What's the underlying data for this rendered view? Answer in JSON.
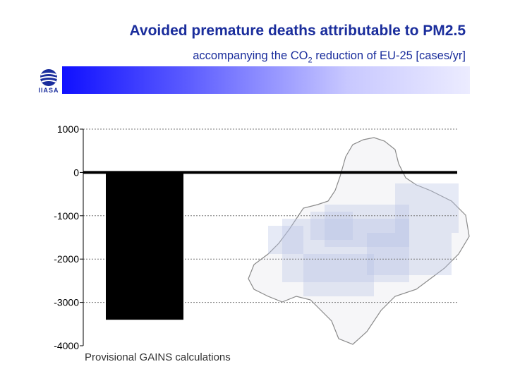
{
  "header": {
    "title": "Avoided premature deaths attributable to PM2.5",
    "subtitle_pre": "accompanying the CO",
    "subtitle_sub": "2",
    "subtitle_post": " reduction of EU-25 [cases/yr]"
  },
  "logo": {
    "text": "IIASA",
    "icon": "iiasa-globe-icon"
  },
  "footnote": "Provisional GAINS calculations",
  "colors": {
    "title": "#1a2d9c",
    "bar": "#000000",
    "banner_start": "#1010ff",
    "banner_end": "#ececff"
  },
  "chart_data": {
    "type": "bar",
    "categories": [
      ""
    ],
    "values": [
      -3400
    ],
    "ylim": [
      -4000,
      1000
    ],
    "yticks": [
      1000,
      0,
      -1000,
      -2000,
      -3000,
      -4000
    ],
    "grid": true,
    "background": "map of Europe with light blue markers"
  }
}
